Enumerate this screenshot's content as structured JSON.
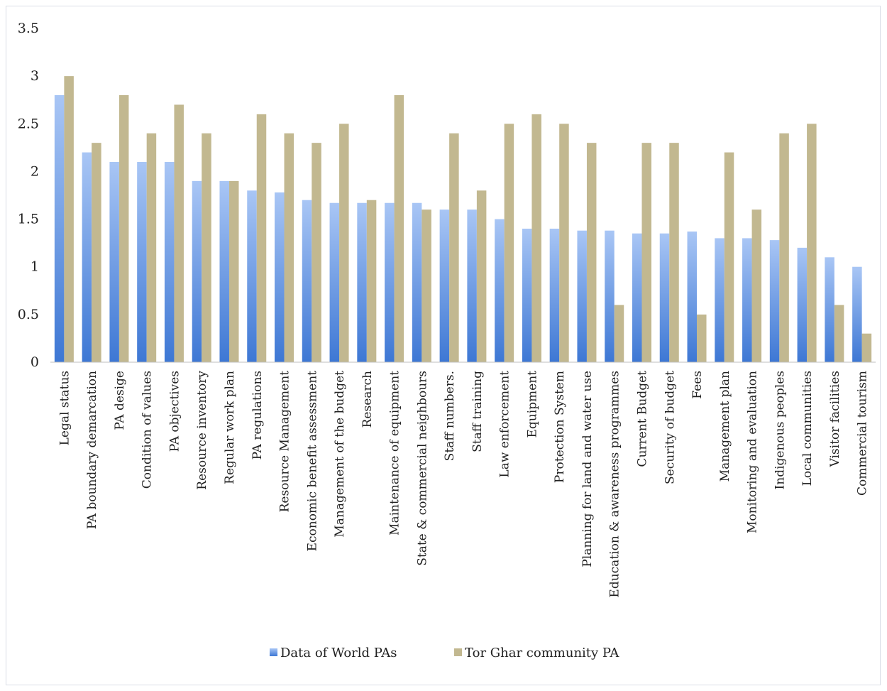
{
  "chart_data": {
    "type": "bar",
    "title": "",
    "xlabel": "",
    "ylabel": "",
    "ylim": [
      0,
      3.5
    ],
    "yticks": [
      0,
      0.5,
      1,
      1.5,
      2,
      2.5,
      3,
      3.5
    ],
    "ytick_labels": [
      "0",
      "0.5",
      "1",
      "1.5",
      "2",
      "2.5",
      "3",
      "3.5"
    ],
    "grid": false,
    "legend_position": "bottom",
    "categories": [
      "Legal status",
      "PA boundary demarcation",
      "PA desige",
      "Condition of values",
      "PA objectives",
      "Resource inventory",
      "Regular work plan",
      "PA regulations",
      "Resource Management",
      "Economic benefit assessment",
      "Management of the budget",
      "Research",
      "Maintenance of equipment",
      "State & commercial neighbours",
      "Staff numbers.",
      "Staff training",
      "Law enforcement",
      "Equipment",
      "Protection System",
      "Planning for land and water use",
      "Education & awareness programmes",
      "Current Budget",
      "Security of budget",
      "Fees",
      "Management plan",
      "Monitoring and evaluation",
      "Indigenous peoples",
      "Local communities",
      "Visitor facilities",
      "Commercial tourism"
    ],
    "series": [
      {
        "name": "Data of World PAs",
        "color": "#5b8fe0",
        "values": [
          2.8,
          2.2,
          2.1,
          2.1,
          2.1,
          1.9,
          1.9,
          1.8,
          1.78,
          1.7,
          1.67,
          1.67,
          1.67,
          1.67,
          1.6,
          1.6,
          1.5,
          1.4,
          1.4,
          1.38,
          1.38,
          1.35,
          1.35,
          1.37,
          1.3,
          1.3,
          1.28,
          1.2,
          1.1,
          1.0
        ]
      },
      {
        "name": "Tor Ghar community PA",
        "color": "#c2b890",
        "values": [
          3.0,
          2.3,
          2.8,
          2.4,
          2.7,
          2.4,
          1.9,
          2.6,
          2.4,
          2.3,
          2.5,
          1.7,
          2.8,
          1.6,
          2.4,
          1.8,
          2.5,
          2.6,
          2.5,
          2.3,
          0.6,
          2.3,
          2.3,
          0.5,
          2.2,
          1.6,
          2.4,
          2.5,
          0.6,
          0.3
        ]
      }
    ]
  }
}
